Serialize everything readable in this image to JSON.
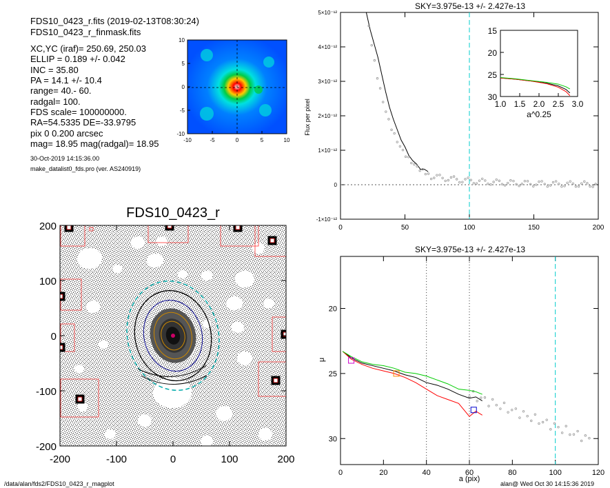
{
  "header": {
    "lines": [
      "FDS10_0423_r.fits  (2019-02-13T08:30:24)",
      "FDS10_0423_r_finmask.fits",
      "XC,YC (iraf)=    250.69, 250.03",
      "ELLIP = 0.189 +/- 0.042",
      "INC   = 35.80",
      "PA    =  14.1 +/-  10.4",
      "range=   40.-   60.",
      "radgal=  100.",
      "FDS scale=  100000000.",
      "RA=54.5335   DE=-33.9795",
      "pix 0 0.200 arcsec",
      "mag=  18.95  mag(radgal)=  18.95"
    ],
    "timestamp": "30-Oct-2019 14:15:36.00",
    "program": "make_datalist0_fds.pro (ver. AS240919)"
  },
  "footer": {
    "left": "/data/alan/fds2/FDS10_0423_r_magplot",
    "right": "alan@  Wed Oct 30 14:15:36 2019"
  },
  "colors": {
    "series_black": "#000000",
    "series_red": "#ff0000",
    "series_green": "#00cc00",
    "series_orange": "#cc8800",
    "sky_line": "#00cccc",
    "marker_magenta": "#cc00cc",
    "marker_orange": "#ff8800",
    "marker_blue": "#0000cc"
  },
  "chart_data": [
    {
      "id": "thumbnail",
      "type": "heatmap",
      "colormap": "rainbow",
      "xlim": [
        -10,
        10
      ],
      "ylim": [
        -10,
        10
      ],
      "x_ticks": [
        "-10",
        "-5",
        "0",
        "5",
        "10"
      ],
      "y_ticks": [
        "-10",
        "-5",
        "0",
        "5",
        "10"
      ]
    },
    {
      "id": "image",
      "type": "scatter",
      "title": "FDS10_0423_r",
      "xlim": [
        -200,
        200
      ],
      "ylim": [
        -200,
        200
      ],
      "x_ticks": [
        "-200",
        "-100",
        "0",
        "100",
        "200"
      ],
      "y_ticks": [
        "-200",
        "-100",
        "0",
        "100",
        "200"
      ]
    },
    {
      "id": "flux_profile",
      "type": "line",
      "title": "SKY=3.975e-13 +/- 2.427e-13",
      "ylabel": "Flux per pixel",
      "xlim": [
        0,
        200
      ],
      "ylim": [
        -1e-12,
        5e-12
      ],
      "x_ticks": [
        "0",
        "50",
        "100",
        "150",
        "200"
      ],
      "y_ticks": [
        "-1×10⁻¹²",
        "0",
        "1×10⁻¹²",
        "2×10⁻¹²",
        "3×10⁻¹²",
        "4×10⁻¹²",
        "5×10⁻¹²"
      ],
      "sky_radius": 100,
      "series": [
        {
          "x": [
            20,
            23,
            26,
            29,
            32,
            35,
            38,
            41,
            44,
            47,
            50,
            53,
            56,
            59,
            62,
            65,
            68
          ],
          "values": [
            5e-12,
            4.5e-12,
            4.1e-12,
            3.7e-12,
            3.2e-12,
            2.7e-12,
            2.25e-12,
            1.9e-12,
            1.6e-12,
            1.3e-12,
            1.1e-12,
            8.5e-13,
            7e-13,
            6e-13,
            4.5e-13,
            4.5e-13,
            3.8e-13
          ]
        }
      ]
    },
    {
      "id": "inset",
      "type": "line",
      "xlabel": "a^0.25",
      "xlim": [
        1.0,
        3.0
      ],
      "ylim": [
        30,
        15
      ],
      "x_ticks": [
        "1.0",
        "1.5",
        "2.0",
        "2.5",
        "3.0"
      ],
      "y_ticks": [
        "15",
        "20",
        "25",
        "30"
      ],
      "series": [
        {
          "color": "black",
          "x": [
            1.0,
            1.4,
            1.8,
            2.2,
            2.5,
            2.7,
            2.8
          ],
          "values": [
            25.8,
            26.1,
            26.5,
            27.0,
            27.6,
            28.4,
            29.2
          ]
        },
        {
          "color": "red",
          "x": [
            1.0,
            1.4,
            1.8,
            2.2,
            2.5,
            2.7,
            2.8
          ],
          "values": [
            25.8,
            26.1,
            26.5,
            27.1,
            27.9,
            28.9,
            29.8
          ]
        },
        {
          "color": "green",
          "x": [
            1.0,
            1.4,
            1.8,
            2.2,
            2.5,
            2.7,
            2.8
          ],
          "values": [
            25.7,
            26.0,
            26.4,
            26.8,
            27.2,
            27.8,
            28.3
          ]
        }
      ]
    },
    {
      "id": "sb_profile",
      "type": "line",
      "title": "SKY=3.975e-13 +/- 2.427e-13",
      "xlabel": "a (pix)",
      "ylabel": "μ",
      "xlim": [
        0,
        120
      ],
      "ylim": [
        32,
        16
      ],
      "x_ticks": [
        "0",
        "20",
        "40",
        "60",
        "80",
        "100",
        "120"
      ],
      "y_ticks": [
        "20",
        "25",
        "30"
      ],
      "range_lines": [
        40,
        60
      ],
      "sky_radius": 100,
      "series": [
        {
          "color": "black",
          "x": [
            1,
            5,
            10,
            15,
            20,
            25,
            30,
            35,
            40,
            45,
            50,
            55,
            60,
            63,
            66
          ],
          "values": [
            23.3,
            23.8,
            24.2,
            24.4,
            24.6,
            24.8,
            25.1,
            25.3,
            25.7,
            25.9,
            26.2,
            26.6,
            26.9,
            26.8,
            27.1
          ]
        },
        {
          "color": "red",
          "x": [
            1,
            5,
            10,
            15,
            20,
            25,
            30,
            35,
            40,
            45,
            50,
            55,
            60,
            63,
            66
          ],
          "values": [
            23.3,
            23.9,
            24.3,
            24.6,
            24.8,
            25.0,
            25.3,
            25.7,
            26.2,
            26.7,
            27.0,
            27.3,
            28.3,
            27.9,
            28.2
          ]
        },
        {
          "color": "green",
          "x": [
            1,
            5,
            10,
            15,
            20,
            25,
            30,
            35,
            40,
            45,
            50,
            55,
            60,
            63,
            66
          ],
          "values": [
            23.3,
            23.7,
            24.1,
            24.3,
            24.4,
            24.6,
            24.9,
            25.0,
            25.2,
            25.5,
            25.8,
            26.2,
            26.3,
            26.4,
            26.6
          ]
        }
      ]
    }
  ]
}
